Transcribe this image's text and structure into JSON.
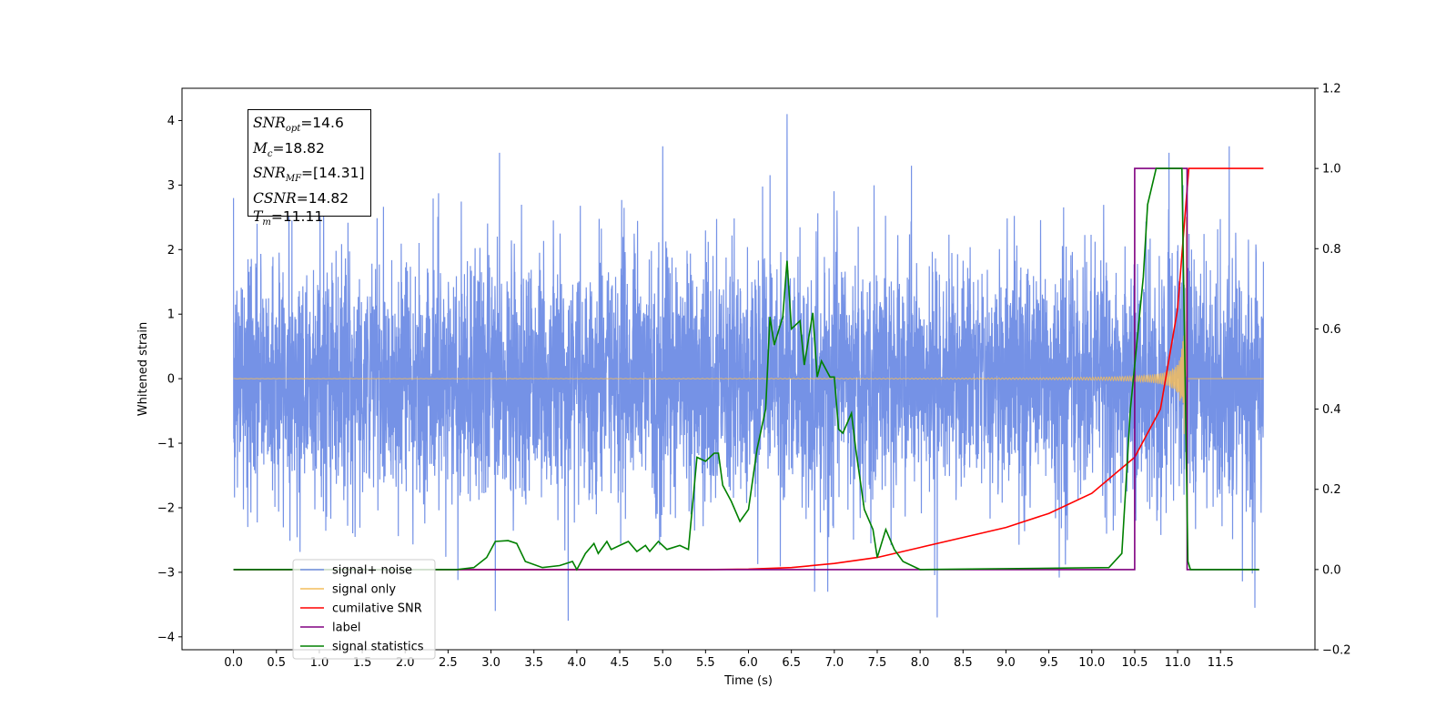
{
  "chart_data": {
    "type": "line",
    "xlabel": "Time (s)",
    "ylabel": "Whitened strain",
    "xlim": [
      -0.6,
      12.6
    ],
    "ylim": [
      -4.2,
      4.5
    ],
    "y2lim": [
      -0.2,
      1.2
    ],
    "x_ticks": [
      0.0,
      0.5,
      1.0,
      1.5,
      2.0,
      2.5,
      3.0,
      3.5,
      4.0,
      4.5,
      5.0,
      5.5,
      6.0,
      6.5,
      7.0,
      7.5,
      8.0,
      8.5,
      9.0,
      9.5,
      10.0,
      10.5,
      11.0,
      11.5
    ],
    "x_tick_labels": [
      "0.0",
      "0.5",
      "1.0",
      "1.5",
      "2.0",
      "2.5",
      "3.0",
      "3.5",
      "4.0",
      "4.5",
      "5.0",
      "5.5",
      "6.0",
      "6.5",
      "7.0",
      "7.5",
      "8.0",
      "8.5",
      "9.0",
      "9.5",
      "10.0",
      "10.5",
      "11.0",
      "11.5"
    ],
    "y_ticks": [
      -4,
      -3,
      -2,
      -1,
      0,
      1,
      2,
      3,
      4
    ],
    "y_tick_labels": [
      "−4",
      "−3",
      "−2",
      "−1",
      "0",
      "1",
      "2",
      "3",
      "4"
    ],
    "y2_ticks": [
      -0.2,
      0.0,
      0.2,
      0.4,
      0.6,
      0.8,
      1.0,
      1.2
    ],
    "y2_tick_labels": [
      "−0.2",
      "0.0",
      "0.2",
      "0.4",
      "0.6",
      "0.8",
      "1.0",
      "1.2"
    ],
    "legend": {
      "placement": "lower-left",
      "entries": [
        {
          "label": "signal+ noise",
          "color": "#7592e6"
        },
        {
          "label": "signal only",
          "color": "#f4bd5c"
        },
        {
          "label": "cumilative SNR",
          "color": "#ff0000"
        },
        {
          "label": "label",
          "color": "#800080"
        },
        {
          "label": "signal statistics",
          "color": "#008000"
        }
      ]
    },
    "annotation": {
      "snr_opt_label": "SNR",
      "snr_opt_sub": "opt",
      "snr_opt_value": "=14.6",
      "mc_label": "M",
      "mc_sub": "c",
      "mc_value": "=18.82",
      "snr_mf_label": "SNR",
      "snr_mf_sub": "MF",
      "snr_mf_value": "=[14.31]",
      "csnr_label": "CSNR",
      "csnr_value": "=14.82",
      "tm_label": "T",
      "tm_sub": "m",
      "tm_value": "=11.11"
    },
    "series": [
      {
        "name": "signal+ noise",
        "axis": "left",
        "color": "#7592e6",
        "description_of_envelope": "dense noise spanning x 0 to 12.0",
        "x_range": [
          0.0,
          12.0
        ],
        "noise_sigma": 0.95,
        "notable_peaks": [
          [
            0.0,
            2.8
          ],
          [
            1.05,
            3.3
          ],
          [
            3.1,
            3.5
          ],
          [
            5.0,
            3.6
          ],
          [
            6.45,
            4.1
          ],
          [
            7.9,
            3.3
          ],
          [
            10.9,
            3.5
          ],
          [
            11.6,
            3.6
          ],
          [
            3.05,
            -3.6
          ],
          [
            3.9,
            -3.75
          ],
          [
            8.2,
            -3.7
          ],
          [
            11.9,
            -3.55
          ]
        ]
      },
      {
        "name": "signal only",
        "axis": "left",
        "color": "#f4bd5c",
        "x_range": [
          0.0,
          12.0
        ],
        "chirp_end": 11.11
      },
      {
        "name": "cumilative SNR",
        "axis": "right",
        "color": "#ff0000",
        "points": [
          [
            0.0,
            0.0
          ],
          [
            5.5,
            0.0
          ],
          [
            6.0,
            0.001
          ],
          [
            6.5,
            0.005
          ],
          [
            7.0,
            0.015
          ],
          [
            7.5,
            0.03
          ],
          [
            8.0,
            0.055
          ],
          [
            8.5,
            0.08
          ],
          [
            9.0,
            0.105
          ],
          [
            9.5,
            0.14
          ],
          [
            10.0,
            0.19
          ],
          [
            10.5,
            0.28
          ],
          [
            10.8,
            0.4
          ],
          [
            11.0,
            0.65
          ],
          [
            11.1,
            0.92
          ],
          [
            11.13,
            1.0
          ],
          [
            12.0,
            1.0
          ]
        ]
      },
      {
        "name": "label",
        "axis": "right",
        "color": "#800080",
        "points": [
          [
            0.0,
            0.0
          ],
          [
            10.5,
            0.0
          ],
          [
            10.5,
            1.0
          ],
          [
            11.11,
            1.0
          ],
          [
            11.11,
            0.0
          ],
          [
            11.95,
            0.0
          ]
        ]
      },
      {
        "name": "signal statistics",
        "axis": "right",
        "color": "#008000",
        "points": [
          [
            0.0,
            0.0
          ],
          [
            2.6,
            0.0
          ],
          [
            2.8,
            0.005
          ],
          [
            2.95,
            0.03
          ],
          [
            3.05,
            0.07
          ],
          [
            3.2,
            0.072
          ],
          [
            3.3,
            0.065
          ],
          [
            3.4,
            0.02
          ],
          [
            3.6,
            0.005
          ],
          [
            3.8,
            0.01
          ],
          [
            3.95,
            0.02
          ],
          [
            4.0,
            0.0
          ],
          [
            4.1,
            0.04
          ],
          [
            4.2,
            0.065
          ],
          [
            4.25,
            0.04
          ],
          [
            4.35,
            0.07
          ],
          [
            4.4,
            0.05
          ],
          [
            4.5,
            0.06
          ],
          [
            4.6,
            0.07
          ],
          [
            4.7,
            0.045
          ],
          [
            4.8,
            0.06
          ],
          [
            4.85,
            0.045
          ],
          [
            4.95,
            0.07
          ],
          [
            5.05,
            0.05
          ],
          [
            5.2,
            0.06
          ],
          [
            5.3,
            0.05
          ],
          [
            5.4,
            0.28
          ],
          [
            5.5,
            0.27
          ],
          [
            5.6,
            0.29
          ],
          [
            5.65,
            0.29
          ],
          [
            5.7,
            0.21
          ],
          [
            5.8,
            0.17
          ],
          [
            5.9,
            0.12
          ],
          [
            6.0,
            0.15
          ],
          [
            6.1,
            0.3
          ],
          [
            6.2,
            0.4
          ],
          [
            6.25,
            0.63
          ],
          [
            6.3,
            0.56
          ],
          [
            6.4,
            0.63
          ],
          [
            6.45,
            0.77
          ],
          [
            6.5,
            0.6
          ],
          [
            6.6,
            0.62
          ],
          [
            6.65,
            0.51
          ],
          [
            6.75,
            0.64
          ],
          [
            6.8,
            0.48
          ],
          [
            6.85,
            0.52
          ],
          [
            6.95,
            0.48
          ],
          [
            7.0,
            0.48
          ],
          [
            7.05,
            0.35
          ],
          [
            7.1,
            0.34
          ],
          [
            7.2,
            0.39
          ],
          [
            7.25,
            0.3
          ],
          [
            7.35,
            0.15
          ],
          [
            7.45,
            0.1
          ],
          [
            7.5,
            0.03
          ],
          [
            7.6,
            0.1
          ],
          [
            7.7,
            0.05
          ],
          [
            7.8,
            0.02
          ],
          [
            8.0,
            0.0
          ],
          [
            10.2,
            0.005
          ],
          [
            10.35,
            0.04
          ],
          [
            10.45,
            0.4
          ],
          [
            10.6,
            0.73
          ],
          [
            10.65,
            0.91
          ],
          [
            10.75,
            1.0
          ],
          [
            11.05,
            1.0
          ],
          [
            11.12,
            0.02
          ],
          [
            11.15,
            0.0
          ],
          [
            11.95,
            0.0
          ]
        ]
      }
    ]
  }
}
